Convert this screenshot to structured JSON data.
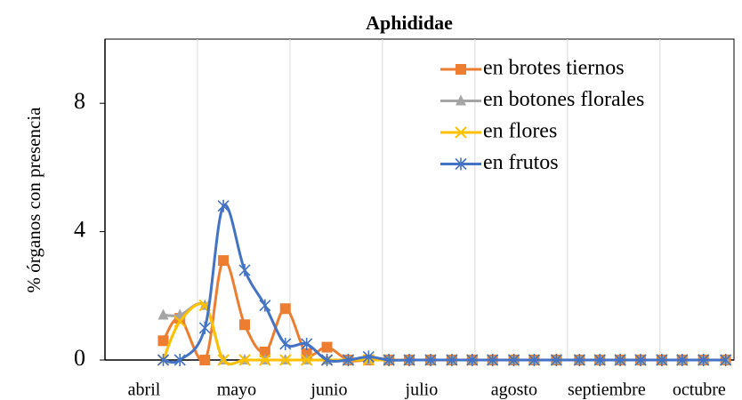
{
  "chart_data": {
    "type": "line",
    "title": "Aphididae",
    "ylabel": "% órganos con presencia",
    "categories": [
      "abril",
      "mayo",
      "junio",
      "julio",
      "agosto",
      "septiembre",
      "octubre"
    ],
    "x": [
      0.63,
      0.81,
      1.08,
      1.28,
      1.51,
      1.73,
      1.95,
      2.18,
      2.4,
      2.63,
      2.85,
      3.07,
      3.29,
      3.52,
      3.75,
      3.97,
      4.19,
      4.42,
      4.64,
      4.88,
      5.13,
      5.35,
      5.57,
      5.79,
      6.02,
      6.24,
      6.47,
      6.71
    ],
    "xlim": [
      0,
      6.8
    ],
    "xticks": [
      0,
      1,
      2,
      3,
      4,
      5,
      6
    ],
    "ylim": [
      0,
      10
    ],
    "yticks": [
      0,
      4,
      8
    ],
    "smooth": true,
    "grid": "x",
    "legend": "upper right",
    "series": [
      {
        "name": "en brotes tiernos",
        "color": "#ed7d31",
        "marker": "square",
        "values": [
          0.6,
          1.3,
          0,
          3.1,
          1.1,
          0.25,
          1.6,
          0.2,
          0.4,
          0,
          0,
          0,
          0,
          0,
          0,
          0,
          0,
          0,
          0,
          0,
          0,
          0,
          0,
          0,
          0,
          0,
          0,
          0
        ]
      },
      {
        "name": "en botones florales",
        "color": "#a5a5a5",
        "marker": "triangle",
        "values": [
          1.4,
          1.4,
          1.7,
          0,
          0,
          0,
          0,
          0,
          0,
          0,
          0,
          0,
          0,
          0,
          0,
          0,
          0,
          0,
          0,
          0,
          0,
          0,
          0,
          0,
          0,
          0,
          0,
          0
        ]
      },
      {
        "name": "en flores",
        "color": "#ffc000",
        "marker": "x",
        "values": [
          0,
          1.2,
          1.7,
          0,
          0,
          0,
          0,
          0,
          0,
          0,
          0,
          0,
          0,
          0,
          0,
          0,
          0,
          0,
          0,
          0,
          0,
          0,
          0,
          0,
          0,
          0,
          0,
          0
        ]
      },
      {
        "name": "en frutos",
        "color": "#4472c4",
        "marker": "star",
        "values": [
          0,
          0,
          1.0,
          4.8,
          2.8,
          1.7,
          0.5,
          0.5,
          0,
          0,
          0.1,
          0,
          0,
          0,
          0,
          0,
          0,
          0,
          0,
          0,
          0,
          0,
          0,
          0,
          0,
          0,
          0,
          0
        ]
      }
    ]
  }
}
